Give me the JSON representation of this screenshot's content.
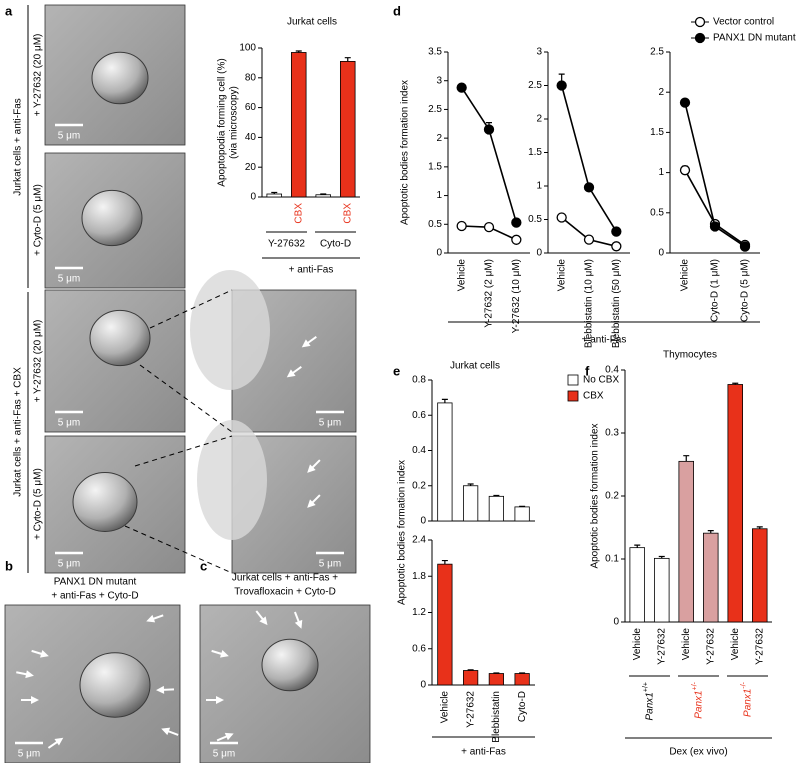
{
  "panel_letters": [
    "a",
    "b",
    "c",
    "d",
    "e",
    "f"
  ],
  "panel_a": {
    "group_labels": [
      "Jurkat cells + anti-Fas",
      "Jurkat cells + anti-Fas + CBX"
    ],
    "row_labels": [
      "+ Y-27632 (20 μM)",
      "+ Cyto-D (5 μM)",
      "+ Y-27632 (20 μM)",
      "+ Cyto-D (5 μM)"
    ],
    "scale_bar": "5 μm"
  },
  "panel_b": {
    "title_lines": [
      "PANX1 DN mutant",
      "+ anti-Fas + Cyto-D"
    ]
  },
  "panel_c": {
    "title_lines": [
      "Jurkat cells + anti-Fas +",
      "Trovafloxacin + Cyto-D"
    ]
  },
  "chart_data": [
    {
      "type": "bar",
      "title": "Jurkat cells",
      "ylabel_lines": [
        "Apoptopodia forming cell (%)",
        "(via microscopy)"
      ],
      "categories": [
        null,
        "CBX",
        null,
        "CBX"
      ],
      "category_colors": [
        null,
        "#e8311a",
        null,
        "#e8311a"
      ],
      "values": [
        2,
        97,
        1.5,
        91
      ],
      "errors": [
        1,
        1,
        0.5,
        2.5
      ],
      "colors": [
        "#ffffff",
        "#e8311a",
        "#ffffff",
        "#e8311a"
      ],
      "groups": [
        "Y-27632",
        "Cyto-D"
      ],
      "xlabel": "+ anti-Fas",
      "ylim": [
        0,
        100
      ],
      "yticks": [
        0,
        20,
        40,
        60,
        80,
        100
      ]
    },
    {
      "type": "line",
      "ylabel": "Apoptotic bodies formation index",
      "xlabel": "+ anti-Fas",
      "legend": [
        {
          "name": "Vector control",
          "color": "#ffffff"
        },
        {
          "name": "PANX1 DN mutant",
          "color": "#000000"
        }
      ],
      "panels": [
        {
          "categories": [
            "Vehicle",
            "Y-27632 (2 μM)",
            "Y-27632 (10 μM)"
          ],
          "ylim": [
            0,
            3.5
          ],
          "yticks": [
            0,
            0.5,
            1,
            1.5,
            2,
            2.5,
            3,
            3.5
          ],
          "series": [
            {
              "values": [
                0.47,
                0.45,
                0.23
              ],
              "errors": [
                0.02,
                0.02,
                0.02
              ]
            },
            {
              "values": [
                2.88,
                2.15,
                0.53
              ],
              "errors": [
                0.03,
                0.12,
                0.03
              ]
            }
          ]
        },
        {
          "categories": [
            "Vehicle",
            "Blebbistatin (10 μM)",
            "Blebbistatin (50 μM)"
          ],
          "ylim": [
            0,
            3
          ],
          "yticks": [
            0,
            0.5,
            1,
            1.5,
            2,
            2.5,
            3
          ],
          "series": [
            {
              "values": [
                0.53,
                0.2,
                0.1
              ],
              "errors": [
                0.02,
                0.01,
                0.01
              ]
            },
            {
              "values": [
                2.5,
                0.98,
                0.32
              ],
              "errors": [
                0.17,
                0.03,
                0.03
              ]
            }
          ]
        },
        {
          "categories": [
            "Vehicle",
            "Cyto-D (1 μM)",
            "Cyto-D (5 μM)"
          ],
          "ylim": [
            0,
            2.5
          ],
          "yticks": [
            0,
            0.5,
            1,
            1.5,
            2,
            2.5
          ],
          "series": [
            {
              "values": [
                1.03,
                0.36,
                0.1
              ],
              "errors": [
                0.05,
                0.02,
                0.01
              ]
            },
            {
              "values": [
                1.87,
                0.33,
                0.08
              ],
              "errors": [
                0.02,
                0.02,
                0.01
              ]
            }
          ]
        }
      ]
    },
    {
      "type": "bar_panels",
      "title": "Jurkat cells",
      "ylabel": "Apoptotic bodies formation index",
      "xlabel": "+ anti-Fas",
      "categories": [
        "Vehicle",
        "Y-27632",
        "Blebbistatin",
        "Cyto-D"
      ],
      "legend": [
        {
          "name": "No CBX",
          "color": "#ffffff"
        },
        {
          "name": "CBX",
          "color": "#e8311a"
        }
      ],
      "panels": [
        {
          "values": [
            0.67,
            0.2,
            0.14,
            0.08
          ],
          "errors": [
            0.02,
            0.01,
            0.005,
            0.003
          ],
          "color": "#ffffff",
          "ylim": [
            0,
            0.8
          ],
          "yticks": [
            0,
            0.2,
            0.4,
            0.6,
            0.8
          ]
        },
        {
          "values": [
            2.0,
            0.24,
            0.19,
            0.19
          ],
          "errors": [
            0.06,
            0.01,
            0.01,
            0.01
          ],
          "color": "#e8311a",
          "ylim": [
            0,
            2.4
          ],
          "yticks": [
            0,
            0.6,
            1.2,
            1.8,
            2.4
          ]
        }
      ]
    },
    {
      "type": "bar",
      "title": "Thymocytes",
      "ylabel": "Apoptotic bodies formation index",
      "categories": [
        "Vehicle",
        "Y-27632",
        "Vehicle",
        "Y-27632",
        "Vehicle",
        "Y-27632"
      ],
      "values": [
        0.118,
        0.101,
        0.255,
        0.141,
        0.377,
        0.148
      ],
      "errors": [
        0.004,
        0.003,
        0.009,
        0.004,
        0.002,
        0.003
      ],
      "colors": [
        "#ffffff",
        "#ffffff",
        "#d9a0a0",
        "#d9a0a0",
        "#e8311a",
        "#e8311a"
      ],
      "groups": [
        {
          "label": "Panx1",
          "sup": "+/+",
          "color": "#000000"
        },
        {
          "label": "Panx1",
          "sup": "+/-",
          "color": "#e8311a"
        },
        {
          "label": "Panx1",
          "sup": "-/-",
          "color": "#e8311a"
        }
      ],
      "xlabel": "Dex (ex vivo)",
      "ylim": [
        0,
        0.4
      ],
      "yticks": [
        0,
        0.1,
        0.2,
        0.3,
        0.4
      ]
    }
  ]
}
